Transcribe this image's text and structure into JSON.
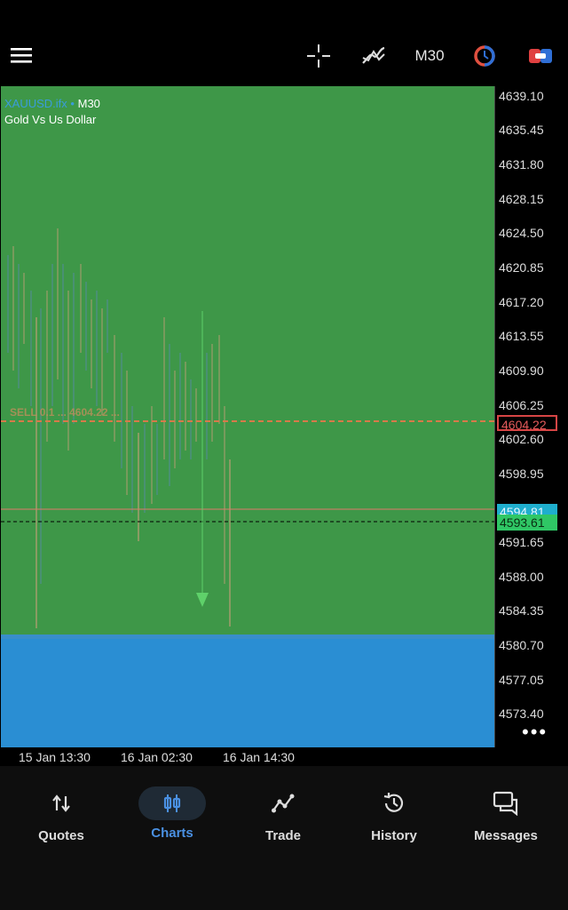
{
  "toolbar": {
    "timeframe": "M30",
    "icons": [
      "menu-icon",
      "crosshair-icon",
      "indicators-icon",
      "clock-icon",
      "trade-icon"
    ]
  },
  "chart": {
    "symbol": "XAUUSD.ifx",
    "separator": "•",
    "timeframe": "M30",
    "description": "Gold Vs Us Dollar",
    "order_label": "SELL 0.1 ... 4604.22 ...",
    "order_price": "4604.22",
    "ask_price": "4594.81",
    "bid_price": "4593.61",
    "price_ticks": [
      "4639.10",
      "4635.45",
      "4631.80",
      "4628.15",
      "4624.50",
      "4620.85",
      "4617.20",
      "4613.55",
      "4609.90",
      "4606.25",
      "4602.60",
      "4598.95",
      "4591.65",
      "4588.00",
      "4584.35",
      "4580.70",
      "4577.05",
      "4573.40"
    ],
    "time_ticks": [
      "15 Jan 13:30",
      "16 Jan 02:30",
      "16 Jan 14:30"
    ],
    "colors": {
      "background": "#3e9748",
      "indicator_window": "#2a8ed3",
      "bull_candle": "#c9a07a",
      "bear_candle": "#5a8ab0",
      "order_line": "#d77a4a",
      "ask_line": "#e07a6a",
      "bid_line": "#000000"
    },
    "more_label": "•••"
  },
  "nav": {
    "items": [
      {
        "label": "Quotes"
      },
      {
        "label": "Charts"
      },
      {
        "label": "Trade"
      },
      {
        "label": "History"
      },
      {
        "label": "Messages"
      }
    ]
  }
}
